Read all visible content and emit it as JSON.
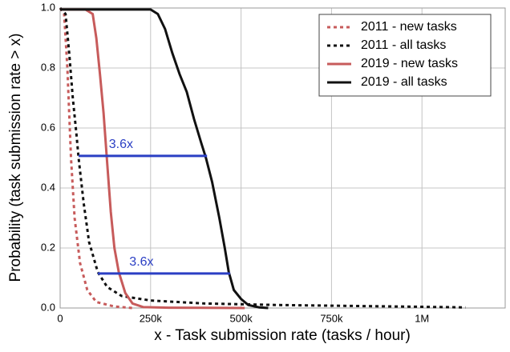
{
  "chart_data": {
    "type": "line",
    "xlabel": "x - Task submission rate (tasks / hour)",
    "ylabel": "Probability (task submission rate > x)",
    "xlim": [
      0,
      1230000
    ],
    "ylim": [
      0,
      1
    ],
    "xticks": [
      0,
      {
        "value": 250000,
        "label": "250k"
      },
      {
        "value": 500000,
        "label": "500k"
      },
      {
        "value": 750000,
        "label": "750k"
      },
      {
        "value": 1000000,
        "label": "1M"
      }
    ],
    "yticks": [
      {
        "value": 0,
        "label": "0.0"
      },
      {
        "value": 0.2,
        "label": "0.2"
      },
      {
        "value": 0.4,
        "label": "0.4"
      },
      {
        "value": 0.6,
        "label": "0.6"
      },
      {
        "value": 0.8,
        "label": "0.8"
      },
      {
        "value": 1,
        "label": "1.0"
      }
    ],
    "grid": true,
    "legend": "upper right",
    "series": [
      {
        "name": "2011 - new tasks",
        "color": "#c75b5b",
        "dashed": true,
        "x": [
          0,
          11000,
          20000,
          30000,
          40000,
          55000,
          75000,
          100000,
          150000,
          200000
        ],
        "values": [
          1.0,
          0.98,
          0.8,
          0.5,
          0.3,
          0.15,
          0.06,
          0.02,
          0.005,
          0
        ]
      },
      {
        "name": "2011 - all tasks",
        "color": "#111111",
        "dashed": true,
        "x": [
          0,
          15000,
          25000,
          35000,
          45000,
          51000,
          65000,
          80000,
          104000,
          130000,
          170000,
          250000,
          400000,
          600000,
          800000,
          1000000,
          1120000
        ],
        "values": [
          1.0,
          0.98,
          0.85,
          0.7,
          0.58,
          0.5,
          0.35,
          0.22,
          0.12,
          0.07,
          0.04,
          0.025,
          0.015,
          0.01,
          0.007,
          0.004,
          0.002
        ]
      },
      {
        "name": "2019 - new tasks",
        "color": "#c75b5b",
        "dashed": false,
        "x": [
          0,
          70000,
          90000,
          100000,
          110000,
          120000,
          129000,
          140000,
          150000,
          162000,
          180000,
          200000,
          230000,
          300000,
          510000
        ],
        "values": [
          0.995,
          0.995,
          0.98,
          0.9,
          0.78,
          0.65,
          0.5,
          0.32,
          0.2,
          0.12,
          0.05,
          0.015,
          0.003,
          0.001,
          0
        ]
      },
      {
        "name": "2019 - all tasks",
        "color": "#111111",
        "dashed": false,
        "x": [
          0,
          250000,
          270000,
          290000,
          310000,
          330000,
          350000,
          370000,
          390000,
          403000,
          420000,
          440000,
          455000,
          466000,
          480000,
          500000,
          520000,
          550000,
          575000
        ],
        "values": [
          0.995,
          0.995,
          0.98,
          0.93,
          0.85,
          0.78,
          0.72,
          0.63,
          0.55,
          0.5,
          0.42,
          0.3,
          0.2,
          0.12,
          0.06,
          0.03,
          0.01,
          0.002,
          0
        ]
      }
    ],
    "annotations": [
      {
        "text": "3.6x",
        "color": "#2b3fc4",
        "x": [
          51000,
          406000
        ],
        "y": 0.507
      },
      {
        "text": "3.6x",
        "color": "#2b3fc4",
        "x": [
          104000,
          470000
        ],
        "y": 0.115
      }
    ]
  }
}
